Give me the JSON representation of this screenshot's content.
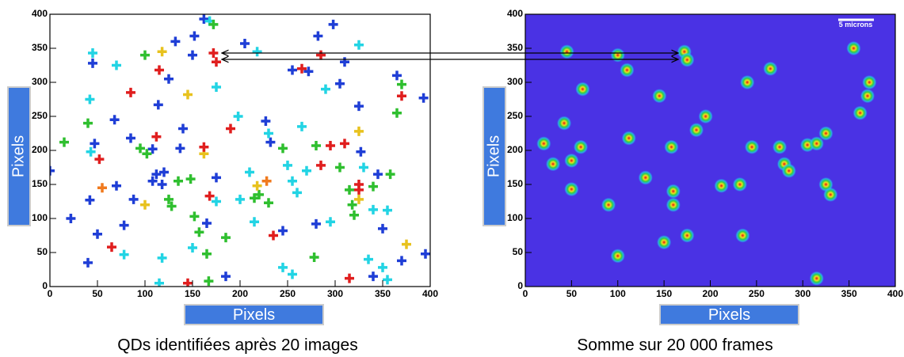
{
  "chart_data": [
    {
      "type": "scatter",
      "xlabel": "Pixels",
      "ylabel": "Pixels",
      "caption": "QDs identifiées après  20 images",
      "xlim": [
        0,
        400
      ],
      "ylim": [
        0,
        400
      ],
      "xticks": [
        0,
        50,
        100,
        150,
        200,
        250,
        300,
        350,
        400
      ],
      "yticks": [
        0,
        50,
        100,
        150,
        200,
        250,
        300,
        350,
        400
      ],
      "series": [
        {
          "color": "#1f3ed6",
          "x": [
            0,
            22,
            40,
            42,
            45,
            47,
            50,
            68,
            70,
            78,
            85,
            88,
            108,
            108,
            112,
            114,
            118,
            120,
            125,
            132,
            137,
            140,
            150,
            152,
            162,
            165,
            175,
            185,
            205,
            227,
            232,
            245,
            255,
            272,
            280,
            282,
            298,
            305,
            310,
            325,
            327,
            340,
            345,
            350,
            365,
            370,
            393,
            395
          ],
          "y": [
            170,
            100,
            35,
            127,
            328,
            210,
            77,
            245,
            148,
            90,
            218,
            128,
            202,
            155,
            165,
            267,
            150,
            168,
            305,
            360,
            203,
            232,
            340,
            368,
            393,
            93,
            160,
            15,
            357,
            243,
            212,
            82,
            318,
            316,
            92,
            368,
            385,
            298,
            330,
            265,
            198,
            15,
            165,
            85,
            310,
            38,
            277,
            48
          ]
        },
        {
          "color": "#22d4e4",
          "x": [
            45,
            43,
            70,
            42,
            78,
            115,
            118,
            150,
            168,
            175,
            198,
            210,
            215,
            218,
            230,
            245,
            250,
            255,
            255,
            260,
            265,
            270,
            290,
            295,
            325,
            330,
            335,
            340,
            350,
            355,
            355,
            200,
            175
          ],
          "y": [
            343,
            198,
            325,
            275,
            47,
            5,
            42,
            57,
            390,
            293,
            250,
            168,
            95,
            345,
            225,
            28,
            178,
            155,
            18,
            138,
            235,
            170,
            290,
            95,
            355,
            175,
            40,
            113,
            28,
            112,
            10,
            128,
            125
          ]
        },
        {
          "color": "#2fbf2f",
          "x": [
            15,
            40,
            100,
            95,
            102,
            125,
            128,
            135,
            148,
            152,
            157,
            167,
            165,
            172,
            185,
            215,
            220,
            230,
            245,
            280,
            278,
            305,
            315,
            318,
            320,
            340,
            358,
            365,
            370
          ],
          "y": [
            212,
            240,
            340,
            203,
            195,
            128,
            118,
            155,
            158,
            103,
            80,
            8,
            48,
            385,
            72,
            130,
            135,
            123,
            203,
            207,
            43,
            175,
            142,
            120,
            105,
            147,
            165,
            255,
            297
          ]
        },
        {
          "color": "#e8c21e",
          "x": [
            100,
            118,
            145,
            162,
            218,
            325,
            325,
            375
          ],
          "y": [
            120,
            345,
            282,
            195,
            148,
            228,
            128,
            62
          ]
        },
        {
          "color": "#f07a1e",
          "x": [
            55,
            228
          ],
          "y": [
            145,
            155
          ]
        },
        {
          "color": "#e01e1e",
          "x": [
            52,
            85,
            115,
            112,
            145,
            162,
            168,
            172,
            175,
            190,
            235,
            265,
            285,
            285,
            295,
            310,
            315,
            325,
            325,
            370,
            65
          ],
          "y": [
            187,
            285,
            318,
            220,
            5,
            205,
            133,
            343,
            330,
            232,
            75,
            320,
            340,
            178,
            207,
            210,
            12,
            150,
            142,
            280,
            58
          ]
        }
      ]
    },
    {
      "type": "heatmap",
      "xlabel": "Pixels",
      "ylabel": "Pixels",
      "caption": "Somme sur 20 000 frames",
      "scale_bar_label": "5 microns",
      "xlim": [
        0,
        400
      ],
      "ylim": [
        0,
        400
      ],
      "xticks": [
        0,
        50,
        100,
        150,
        200,
        250,
        300,
        350,
        400
      ],
      "yticks": [
        0,
        50,
        100,
        150,
        200,
        250,
        300,
        350,
        400
      ],
      "background": "#4a32e4",
      "x": [
        45,
        62,
        100,
        110,
        42,
        60,
        50,
        50,
        112,
        90,
        145,
        158,
        172,
        175,
        185,
        160,
        150,
        160,
        175,
        235,
        265,
        280,
        285,
        305,
        315,
        325,
        325,
        330,
        315,
        370,
        372,
        362,
        232,
        212,
        275,
        245,
        195,
        100,
        30,
        355,
        240,
        130,
        20
      ],
      "y": [
        345,
        290,
        340,
        318,
        240,
        205,
        185,
        143,
        218,
        120,
        280,
        205,
        345,
        333,
        230,
        120,
        65,
        140,
        75,
        75,
        320,
        180,
        170,
        208,
        210,
        225,
        150,
        135,
        12,
        280,
        300,
        255,
        150,
        148,
        205,
        205,
        250,
        45,
        180,
        350,
        300,
        160,
        210
      ]
    }
  ]
}
